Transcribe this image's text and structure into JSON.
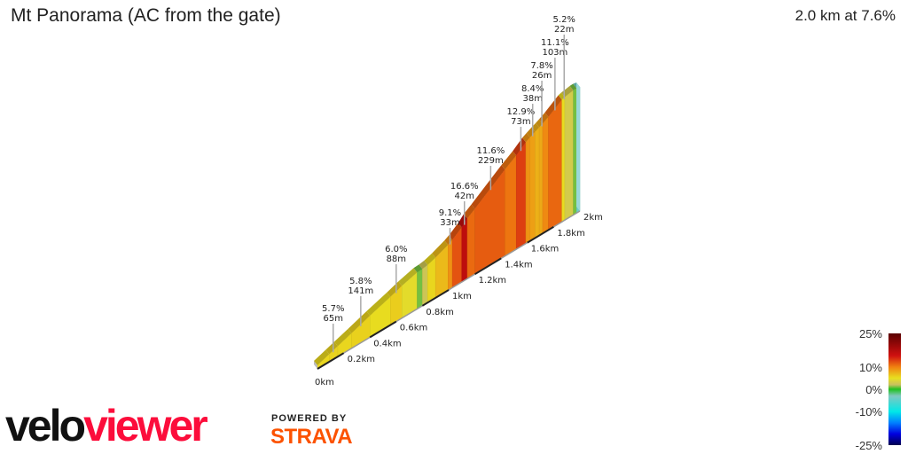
{
  "header": {
    "title": "Mt Panorama (AC from the gate)",
    "summary": "2.0 km at 7.6%"
  },
  "branding": {
    "logo_part1": "velo",
    "logo_part2": "viewer",
    "powered_by": "POWERED BY",
    "strava": "STRAVA"
  },
  "colors": {
    "logo_red": "#fc0d3b",
    "strava_orange": "#fc5200"
  },
  "chart_data": {
    "type": "3d-elevation-profile",
    "distance_unit": "km",
    "distance_range": [
      0,
      2
    ],
    "x_ticks": [
      "0km",
      "0.2km",
      "0.4km",
      "0.6km",
      "0.8km",
      "1km",
      "1.2km",
      "1.4km",
      "1.6km",
      "1.8km",
      "2km"
    ],
    "x_tick_values": [
      0,
      0.2,
      0.4,
      0.6,
      0.8,
      1.0,
      1.2,
      1.4,
      1.6,
      1.8,
      2.0
    ],
    "segments": [
      {
        "start_m": 0,
        "end_m": 90,
        "gradient": 5.5
      },
      {
        "start_m": 90,
        "end_m": 155,
        "gradient": 5.7
      },
      {
        "start_m": 155,
        "end_m": 260,
        "gradient": 5.5
      },
      {
        "start_m": 260,
        "end_m": 401,
        "gradient": 5.8
      },
      {
        "start_m": 401,
        "end_m": 556,
        "gradient": 5.2
      },
      {
        "start_m": 556,
        "end_m": 644,
        "gradient": 6.0
      },
      {
        "start_m": 644,
        "end_m": 760,
        "gradient": 4.5
      },
      {
        "start_m": 760,
        "end_m": 800,
        "gradient": 1.0
      },
      {
        "start_m": 800,
        "end_m": 840,
        "gradient": 2.5
      },
      {
        "start_m": 840,
        "end_m": 900,
        "gradient": 5.5
      },
      {
        "start_m": 900,
        "end_m": 995,
        "gradient": 7.0
      },
      {
        "start_m": 995,
        "end_m": 1028,
        "gradient": 9.1
      },
      {
        "start_m": 1028,
        "end_m": 1100,
        "gradient": 12.0
      },
      {
        "start_m": 1100,
        "end_m": 1142,
        "gradient": 16.6
      },
      {
        "start_m": 1142,
        "end_m": 1200,
        "gradient": 11.0
      },
      {
        "start_m": 1200,
        "end_m": 1429,
        "gradient": 11.6
      },
      {
        "start_m": 1429,
        "end_m": 1515,
        "gradient": 10.5
      },
      {
        "start_m": 1515,
        "end_m": 1588,
        "gradient": 12.9
      },
      {
        "start_m": 1588,
        "end_m": 1620,
        "gradient": 9.0
      },
      {
        "start_m": 1620,
        "end_m": 1658,
        "gradient": 8.4
      },
      {
        "start_m": 1658,
        "end_m": 1690,
        "gradient": 7.5
      },
      {
        "start_m": 1690,
        "end_m": 1716,
        "gradient": 7.8
      },
      {
        "start_m": 1716,
        "end_m": 1760,
        "gradient": 9.5
      },
      {
        "start_m": 1760,
        "end_m": 1863,
        "gradient": 11.1
      },
      {
        "start_m": 1863,
        "end_m": 1885,
        "gradient": 5.2
      },
      {
        "start_m": 1885,
        "end_m": 1950,
        "gradient": 3.0
      },
      {
        "start_m": 1950,
        "end_m": 1975,
        "gradient": 1.0
      },
      {
        "start_m": 1975,
        "end_m": 2000,
        "gradient": -4.0
      }
    ],
    "annotations": [
      {
        "at_km": 0.12,
        "gradient": "5.7%",
        "length": "65m"
      },
      {
        "at_km": 0.33,
        "gradient": "5.8%",
        "length": "141m"
      },
      {
        "at_km": 0.6,
        "gradient": "6.0%",
        "length": "88m"
      },
      {
        "at_km": 1.01,
        "gradient": "9.1%",
        "length": "33m"
      },
      {
        "at_km": 1.12,
        "gradient": "16.6%",
        "length": "42m"
      },
      {
        "at_km": 1.32,
        "gradient": "11.6%",
        "length": "229m"
      },
      {
        "at_km": 1.55,
        "gradient": "12.9%",
        "length": "73m"
      },
      {
        "at_km": 1.64,
        "gradient": "8.4%",
        "length": "38m"
      },
      {
        "at_km": 1.71,
        "gradient": "7.8%",
        "length": "26m"
      },
      {
        "at_km": 1.81,
        "gradient": "11.1%",
        "length": "103m"
      },
      {
        "at_km": 1.88,
        "gradient": "5.2%",
        "length": "22m"
      }
    ],
    "legend": {
      "labels": [
        "25%",
        "10%",
        "0%",
        "-10%",
        "-25%"
      ],
      "label_values": [
        25,
        10,
        0,
        -10,
        -25
      ],
      "placement": "bottom-right",
      "stops": [
        {
          "gradient": 25,
          "color": "#5a0000"
        },
        {
          "gradient": 15,
          "color": "#d01010"
        },
        {
          "gradient": 10,
          "color": "#f08010"
        },
        {
          "gradient": 5,
          "color": "#e8e020"
        },
        {
          "gradient": 2,
          "color": "#c8c060"
        },
        {
          "gradient": 0,
          "color": "#20c020"
        },
        {
          "gradient": -3,
          "color": "#80c8c0"
        },
        {
          "gradient": -10,
          "color": "#00e8e8"
        },
        {
          "gradient": -15,
          "color": "#0080ff"
        },
        {
          "gradient": -20,
          "color": "#0000e0"
        },
        {
          "gradient": -25,
          "color": "#000050"
        }
      ]
    }
  }
}
